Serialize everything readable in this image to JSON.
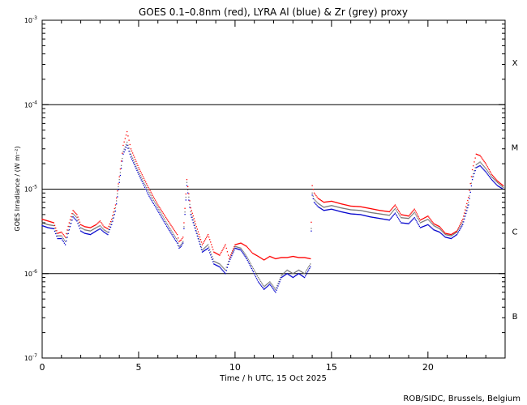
{
  "chart_data": {
    "type": "scatter",
    "title": "GOES 0.1–0.8nm (red), LYRA Al (blue) & Zr (grey) proxy",
    "xlabel": "Time / h UTC, 15 Oct 2025",
    "ylabel": "GOES Irradiance / (W m⁻²)",
    "credit": "ROB/SIDC, Brussels, Belgium",
    "xlim": [
      0,
      24
    ],
    "ylim": [
      1e-07,
      0.001
    ],
    "yscale": "log",
    "x_ticks": [
      0,
      5,
      10,
      15,
      20
    ],
    "y_ticks": [
      {
        "base": "10",
        "exp": "-7",
        "value": 1e-07
      },
      {
        "base": "10",
        "exp": "-6",
        "value": 1e-06
      },
      {
        "base": "10",
        "exp": "-5",
        "value": 1e-05
      },
      {
        "base": "10",
        "exp": "-4",
        "value": 0.0001
      },
      {
        "base": "10",
        "exp": "-3",
        "value": 0.001
      }
    ],
    "reference_lines": [
      1e-06,
      1e-05,
      0.0001
    ],
    "flare_classes": [
      {
        "label": "B",
        "value": 3.16e-07
      },
      {
        "label": "C",
        "value": 3.16e-06
      },
      {
        "label": "M",
        "value": 3.16e-05
      },
      {
        "label": "X",
        "value": 0.000316
      }
    ],
    "series": [
      {
        "color": "#ff0000",
        "x": [
          0.0,
          0.3,
          0.6,
          0.8,
          1.0,
          1.2,
          1.4,
          1.6,
          1.8,
          2.0,
          2.2,
          2.5,
          2.8,
          3.0,
          3.2,
          3.4,
          3.6,
          3.8,
          4.0,
          4.2,
          4.4,
          4.6,
          5.0,
          5.5,
          6.0,
          6.5,
          7.0,
          7.1,
          7.2,
          7.3,
          7.5,
          7.7,
          8.0,
          8.3,
          8.6,
          8.9,
          9.2,
          9.5,
          9.7,
          10.0,
          10.3,
          10.6,
          10.9,
          11.2,
          11.5,
          11.8,
          12.1,
          12.4,
          12.7,
          13.0,
          13.3,
          13.6,
          13.9,
          14.0,
          14.1,
          14.3,
          14.6,
          15.0,
          15.5,
          16.0,
          16.5,
          17.0,
          17.5,
          18.0,
          18.3,
          18.6,
          19.0,
          19.3,
          19.6,
          20.0,
          20.3,
          20.6,
          20.9,
          21.2,
          21.5,
          21.8,
          22.1,
          22.3,
          22.5,
          22.7,
          23.0,
          23.3,
          23.6,
          23.9
        ],
        "y": [
          4.4e-06,
          4.2e-06,
          4e-06,
          3e-06,
          3.1e-06,
          2.7e-06,
          4e-06,
          5.6e-06,
          5e-06,
          3.8e-06,
          3.6e-06,
          3.5e-06,
          3.8e-06,
          4.2e-06,
          3.6e-06,
          3.4e-06,
          4.4e-06,
          6.5e-06,
          1.4e-05,
          3.3e-05,
          4.8e-05,
          3e-05,
          1.8e-05,
          1.05e-05,
          6.5e-06,
          4.3e-06,
          2.9e-06,
          2.4e-06,
          2.5e-06,
          2.7e-06,
          1.3e-05,
          6e-06,
          3.6e-06,
          2.2e-06,
          2.9e-06,
          1.8e-06,
          1.65e-06,
          2.2e-06,
          1.5e-06,
          2.2e-06,
          2.3e-06,
          2.1e-06,
          1.75e-06,
          1.6e-06,
          1.45e-06,
          1.6e-06,
          1.5e-06,
          1.55e-06,
          1.55e-06,
          1.6e-06,
          1.55e-06,
          1.55e-06,
          1.5e-06,
          1.1e-05,
          9e-06,
          7.8e-06,
          7e-06,
          7.2e-06,
          6.7e-06,
          6.3e-06,
          6.2e-06,
          5.9e-06,
          5.6e-06,
          5.4e-06,
          6.5e-06,
          5e-06,
          4.8e-06,
          5.8e-06,
          4.3e-06,
          4.8e-06,
          3.9e-06,
          3.6e-06,
          3e-06,
          2.9e-06,
          3.2e-06,
          4.4e-06,
          8e-06,
          1.7e-05,
          2.6e-05,
          2.5e-05,
          2e-05,
          1.5e-05,
          1.25e-05,
          1.1e-05
        ]
      },
      {
        "color": "#0000cc",
        "x": [
          0.0,
          0.3,
          0.6,
          0.8,
          1.0,
          1.2,
          1.4,
          1.6,
          1.8,
          2.0,
          2.2,
          2.5,
          2.8,
          3.0,
          3.2,
          3.4,
          3.6,
          3.8,
          4.0,
          4.2,
          4.4,
          4.6,
          5.0,
          5.5,
          6.0,
          6.5,
          7.0,
          7.1,
          7.2,
          7.3,
          7.5,
          7.7,
          8.0,
          8.3,
          8.6,
          8.9,
          9.2,
          9.5,
          9.7,
          10.0,
          10.3,
          10.6,
          10.9,
          11.2,
          11.5,
          11.8,
          12.1,
          12.4,
          12.7,
          13.0,
          13.3,
          13.6,
          13.9,
          14.0,
          14.1,
          14.3,
          14.6,
          15.0,
          15.5,
          16.0,
          16.5,
          17.0,
          17.5,
          18.0,
          18.3,
          18.6,
          19.0,
          19.3,
          19.6,
          20.0,
          20.3,
          20.6,
          20.9,
          21.2,
          21.5,
          21.8,
          22.1,
          22.3,
          22.5,
          22.7,
          23.0,
          23.3,
          23.6,
          23.9
        ],
        "y": [
          3.7e-06,
          3.5e-06,
          3.4e-06,
          2.6e-06,
          2.6e-06,
          2.2e-06,
          3.3e-06,
          4.7e-06,
          4.2e-06,
          3.2e-06,
          3e-06,
          2.9e-06,
          3.2e-06,
          3.4e-06,
          3.1e-06,
          2.9e-06,
          3.8e-06,
          5.5e-06,
          1.2e-05,
          2.6e-05,
          3.3e-05,
          2.4e-05,
          1.5e-05,
          8.6e-06,
          5.5e-06,
          3.5e-06,
          2.3e-06,
          2e-06,
          2.1e-06,
          2.3e-06,
          1.1e-05,
          5e-06,
          3e-06,
          1.8e-06,
          2e-06,
          1.3e-06,
          1.2e-06,
          1e-06,
          1.4e-06,
          2e-06,
          1.9e-06,
          1.5e-06,
          1.1e-06,
          8e-07,
          6.5e-07,
          7.5e-07,
          6e-07,
          9e-07,
          1e-06,
          9e-07,
          1e-06,
          9e-07,
          1.2e-06,
          8.5e-06,
          7e-06,
          6.2e-06,
          5.6e-06,
          5.8e-06,
          5.4e-06,
          5.1e-06,
          5e-06,
          4.7e-06,
          4.5e-06,
          4.3e-06,
          5.2e-06,
          4e-06,
          3.9e-06,
          4.6e-06,
          3.5e-06,
          3.8e-06,
          3.3e-06,
          3.1e-06,
          2.7e-06,
          2.6e-06,
          2.9e-06,
          3.8e-06,
          6.5e-06,
          1.3e-05,
          1.8e-05,
          1.9e-05,
          1.6e-05,
          1.3e-05,
          1.1e-05,
          1e-05
        ]
      },
      {
        "color": "#777777",
        "x": [
          0.0,
          0.3,
          0.6,
          0.8,
          1.0,
          1.2,
          1.4,
          1.6,
          1.8,
          2.0,
          2.2,
          2.5,
          2.8,
          3.0,
          3.2,
          3.4,
          3.6,
          3.8,
          4.0,
          4.2,
          4.4,
          4.6,
          5.0,
          5.5,
          6.0,
          6.5,
          7.0,
          7.1,
          7.2,
          7.3,
          7.5,
          7.7,
          8.0,
          8.3,
          8.6,
          8.9,
          9.2,
          9.5,
          9.7,
          10.0,
          10.3,
          10.6,
          10.9,
          11.2,
          11.5,
          11.8,
          12.1,
          12.4,
          12.7,
          13.0,
          13.3,
          13.6,
          13.9,
          14.0,
          14.1,
          14.3,
          14.6,
          15.0,
          15.5,
          16.0,
          16.5,
          17.0,
          17.5,
          18.0,
          18.3,
          18.6,
          19.0,
          19.3,
          19.6,
          20.0,
          20.3,
          20.6,
          20.9,
          21.2,
          21.5,
          21.8,
          22.1,
          22.3,
          22.5,
          22.7,
          23.0,
          23.3,
          23.6,
          23.9
        ],
        "y": [
          4e-06,
          3.8e-06,
          3.7e-06,
          2.8e-06,
          2.8e-06,
          2.4e-06,
          3.6e-06,
          5.1e-06,
          4.6e-06,
          3.5e-06,
          3.3e-06,
          3.2e-06,
          3.5e-06,
          3.7e-06,
          3.3e-06,
          3.1e-06,
          4.1e-06,
          6e-06,
          1.3e-05,
          2.8e-05,
          3.6e-05,
          2.6e-05,
          1.6e-05,
          9.5e-06,
          6e-06,
          3.8e-06,
          2.5e-06,
          2.1e-06,
          2.2e-06,
          2.4e-06,
          1.2e-05,
          5.4e-06,
          3.2e-06,
          1.9e-06,
          2.2e-06,
          1.4e-06,
          1.3e-06,
          1.1e-06,
          1.5e-06,
          2.1e-06,
          2e-06,
          1.6e-06,
          1.2e-06,
          9e-07,
          7e-07,
          8e-07,
          6.5e-07,
          9.5e-07,
          1.1e-06,
          1e-06,
          1.1e-06,
          1e-06,
          1.3e-06,
          9e-06,
          7.6e-06,
          6.8e-06,
          6.1e-06,
          6.4e-06,
          6e-06,
          5.7e-06,
          5.6e-06,
          5.3e-06,
          5.1e-06,
          4.9e-06,
          5.9e-06,
          4.6e-06,
          4.5e-06,
          5.3e-06,
          4e-06,
          4.4e-06,
          3.7e-06,
          3.4e-06,
          2.9e-06,
          2.8e-06,
          3.1e-06,
          4.1e-06,
          7e-06,
          1.4e-05,
          1.95e-05,
          2.1e-05,
          1.75e-05,
          1.4e-05,
          1.2e-05,
          1.05e-05
        ]
      }
    ]
  }
}
